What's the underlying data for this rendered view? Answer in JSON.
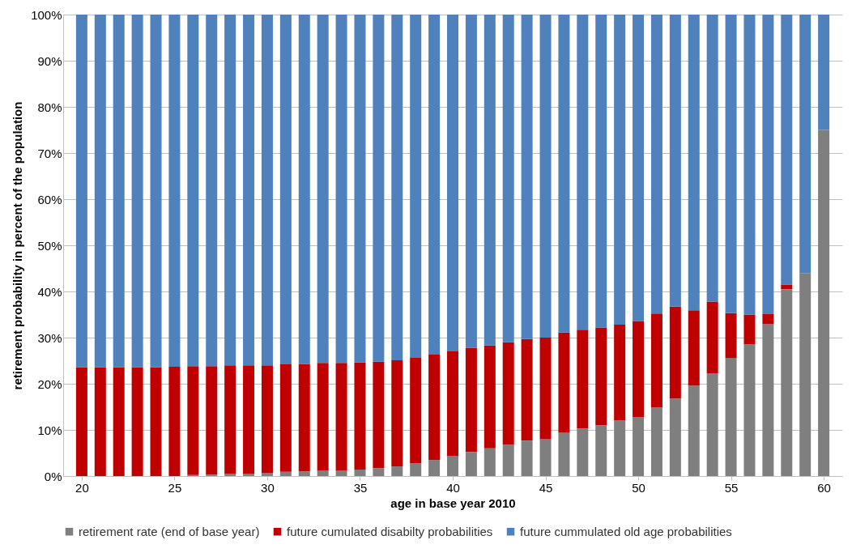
{
  "chart_data": {
    "type": "bar",
    "stacked": true,
    "xlabel": "age in base year 2010",
    "ylabel": "retirement probability in percent of the population",
    "x": [
      20,
      21,
      22,
      23,
      24,
      25,
      26,
      27,
      28,
      29,
      30,
      31,
      32,
      33,
      34,
      35,
      36,
      37,
      38,
      39,
      40,
      41,
      42,
      43,
      44,
      45,
      46,
      47,
      48,
      49,
      50,
      51,
      52,
      53,
      54,
      55,
      56,
      57,
      58,
      59,
      60
    ],
    "xlim": [
      19,
      61
    ],
    "xticks": [
      20,
      25,
      30,
      35,
      40,
      45,
      50,
      55,
      60
    ],
    "ylim": [
      0,
      100
    ],
    "yticks": [
      {
        "value": 0,
        "label": "0%"
      },
      {
        "value": 10,
        "label": "10%"
      },
      {
        "value": 20,
        "label": "20%"
      },
      {
        "value": 30,
        "label": "30%"
      },
      {
        "value": 40,
        "label": "40%"
      },
      {
        "value": 50,
        "label": "50%"
      },
      {
        "value": 60,
        "label": "60%"
      },
      {
        "value": 70,
        "label": "70%"
      },
      {
        "value": 80,
        "label": "80%"
      },
      {
        "value": 90,
        "label": "90%"
      },
      {
        "value": 100,
        "label": "100%"
      }
    ],
    "grid": "y",
    "legend": "bottom",
    "series": [
      {
        "name": "retirement rate (end of base year)",
        "color": "#7f7f7f",
        "values": [
          0,
          0,
          0,
          0,
          0,
          0,
          0.2,
          0.3,
          0.5,
          0.5,
          0.6,
          0.9,
          1.0,
          1.2,
          1.2,
          1.4,
          1.7,
          2.1,
          2.7,
          3.5,
          4.4,
          5.2,
          6.0,
          6.8,
          7.7,
          8.0,
          9.4,
          10.3,
          11.0,
          12.1,
          12.8,
          14.9,
          16.8,
          19.6,
          22.3,
          25.6,
          28.6,
          32.9,
          40.5,
          44.0,
          75.0
        ]
      },
      {
        "name": "future cumulated disabilty probabilities",
        "color": "#c00000",
        "values": [
          23.6,
          23.6,
          23.6,
          23.6,
          23.6,
          23.7,
          23.6,
          23.5,
          23.5,
          23.5,
          23.4,
          23.3,
          23.3,
          23.3,
          23.3,
          23.2,
          23.1,
          23.0,
          22.9,
          22.8,
          22.6,
          22.6,
          22.3,
          22.2,
          22.0,
          22.0,
          21.7,
          21.4,
          21.2,
          20.7,
          20.8,
          20.3,
          19.9,
          16.3,
          15.5,
          9.7,
          6.4,
          2.3,
          1.0,
          0,
          0
        ]
      },
      {
        "name": "future cummulated old age probabilities",
        "color": "#4f81bd",
        "values": [
          76.4,
          76.4,
          76.4,
          76.4,
          76.4,
          76.3,
          76.2,
          76.2,
          76.0,
          76.0,
          76.0,
          75.8,
          75.7,
          75.5,
          75.5,
          75.4,
          75.2,
          74.9,
          74.4,
          73.7,
          73.0,
          72.2,
          71.7,
          71.0,
          70.3,
          70.0,
          68.9,
          68.3,
          67.8,
          67.2,
          66.4,
          64.8,
          63.3,
          64.1,
          62.2,
          64.7,
          65.0,
          64.8,
          58.5,
          56.0,
          25.0
        ]
      }
    ]
  }
}
